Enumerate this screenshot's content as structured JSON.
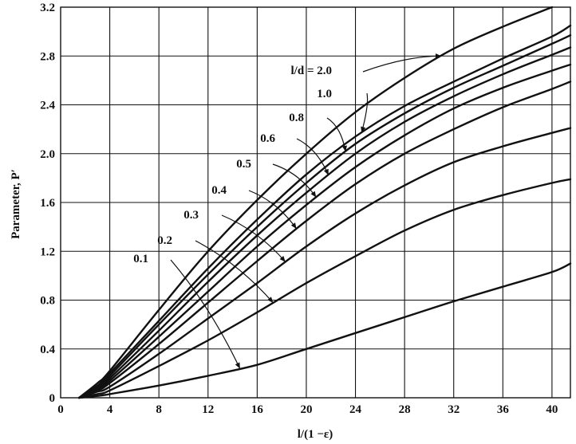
{
  "chart_data": {
    "type": "line",
    "title": "",
    "xlabel": "l/(1 −ε)",
    "ylabel": "Parameter, P′",
    "xlim": [
      0,
      41.5
    ],
    "ylim": [
      0,
      3.2
    ],
    "grid": true,
    "xticks": [
      "0",
      "4",
      "8",
      "12",
      "16",
      "20",
      "24",
      "28",
      "32",
      "36",
      "40"
    ],
    "yticks": [
      "0",
      "0.4",
      "0.8",
      "1.2",
      "1.6",
      "2.0",
      "2.4",
      "2.8",
      "3.2"
    ],
    "series": [
      {
        "name": "l/d = 2.0",
        "x": [
          1.5,
          3,
          4,
          8,
          12,
          16,
          20,
          24,
          28,
          32,
          36,
          40
        ],
        "y": [
          0,
          0.12,
          0.22,
          0.72,
          1.2,
          1.62,
          2.0,
          2.34,
          2.62,
          2.86,
          3.04,
          3.2
        ]
      },
      {
        "name": "1.0",
        "x": [
          1.5,
          3,
          4,
          8,
          12,
          16,
          20,
          24,
          28,
          32,
          36,
          40,
          41.5
        ],
        "y": [
          0,
          0.1,
          0.2,
          0.63,
          1.06,
          1.46,
          1.83,
          2.14,
          2.39,
          2.59,
          2.78,
          2.96,
          3.05
        ]
      },
      {
        "name": "0.8",
        "x": [
          1.5,
          3,
          4,
          8,
          12,
          16,
          20,
          24,
          28,
          32,
          36,
          40,
          41.5
        ],
        "y": [
          0,
          0.09,
          0.18,
          0.6,
          1.01,
          1.4,
          1.76,
          2.08,
          2.33,
          2.54,
          2.72,
          2.9,
          2.97
        ]
      },
      {
        "name": "0.6",
        "x": [
          1.5,
          3,
          4,
          8,
          12,
          16,
          20,
          24,
          28,
          32,
          36,
          40,
          41.5
        ],
        "y": [
          0,
          0.08,
          0.16,
          0.55,
          0.95,
          1.33,
          1.68,
          2.0,
          2.26,
          2.47,
          2.65,
          2.81,
          2.87
        ]
      },
      {
        "name": "0.5",
        "x": [
          1.5,
          3,
          4,
          8,
          12,
          16,
          20,
          24,
          28,
          32,
          36,
          40,
          41.5
        ],
        "y": [
          0,
          0.07,
          0.14,
          0.5,
          0.87,
          1.24,
          1.58,
          1.89,
          2.15,
          2.37,
          2.54,
          2.68,
          2.73
        ]
      },
      {
        "name": "0.4",
        "x": [
          1.5,
          3,
          4,
          8,
          12,
          16,
          20,
          24,
          28,
          32,
          36,
          40,
          41.5
        ],
        "y": [
          0,
          0.06,
          0.12,
          0.44,
          0.78,
          1.12,
          1.45,
          1.75,
          2.0,
          2.2,
          2.38,
          2.53,
          2.59
        ]
      },
      {
        "name": "0.3",
        "x": [
          1.5,
          3,
          4,
          8,
          12,
          16,
          20,
          24,
          28,
          32,
          36,
          40,
          41.5
        ],
        "y": [
          0,
          0.05,
          0.09,
          0.36,
          0.65,
          0.94,
          1.24,
          1.51,
          1.74,
          1.93,
          2.06,
          2.17,
          2.21
        ]
      },
      {
        "name": "0.2",
        "x": [
          1.5,
          3,
          4,
          8,
          12,
          16,
          20,
          24,
          28,
          32,
          36,
          40,
          41.5
        ],
        "y": [
          0,
          0.03,
          0.06,
          0.26,
          0.47,
          0.7,
          0.94,
          1.16,
          1.37,
          1.54,
          1.66,
          1.76,
          1.79
        ]
      },
      {
        "name": "0.1",
        "x": [
          1.5,
          3,
          4,
          8,
          12,
          16,
          20,
          24,
          28,
          32,
          36,
          40,
          41.5
        ],
        "y": [
          0,
          0.015,
          0.03,
          0.1,
          0.18,
          0.27,
          0.4,
          0.53,
          0.66,
          0.79,
          0.91,
          1.03,
          1.1
        ]
      }
    ]
  }
}
